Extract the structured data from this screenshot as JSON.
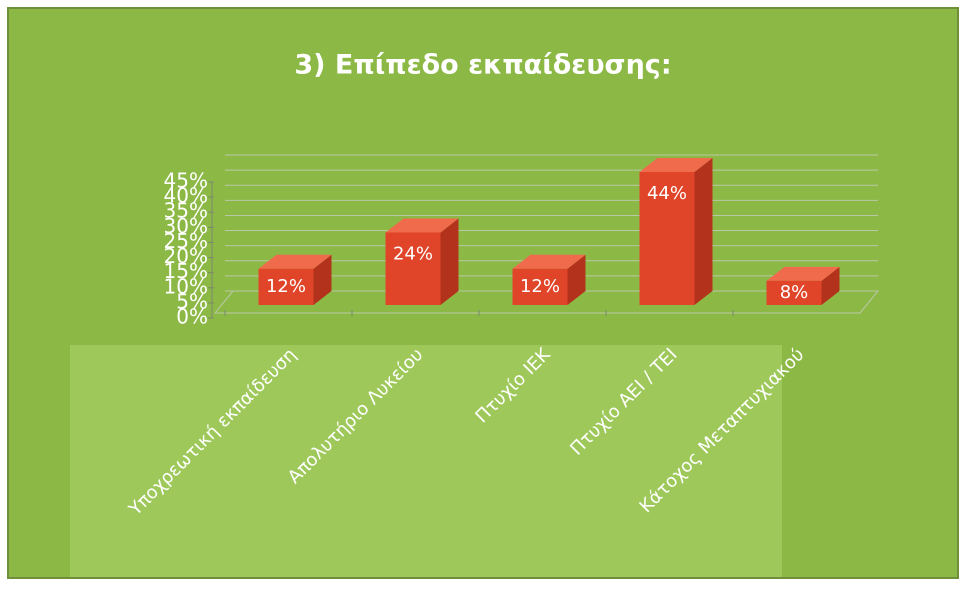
{
  "chart_data": {
    "type": "bar3d",
    "title": "3) Επίπεδο εκπαίδευσης:",
    "categories": [
      "Υποχρεωτική εκπαίδευση",
      "Απολυτήριο Λυκείου",
      "Πτυχίο ΙΕΚ",
      "Πτυχίο ΑΕΙ / ΤΕΙ",
      "Κάτοχος Μεταπτυχιακού"
    ],
    "values": [
      12,
      24,
      12,
      44,
      8
    ],
    "value_labels": [
      "12%",
      "24%",
      "12%",
      "44%",
      "8%"
    ],
    "color": "#e0452a",
    "ylim": [
      0,
      45
    ],
    "yticks": [
      {
        "value": 0,
        "label": "0%"
      },
      {
        "value": 5,
        "label": "5%"
      },
      {
        "value": 10,
        "label": "10%"
      },
      {
        "value": 15,
        "label": "15%"
      },
      {
        "value": 20,
        "label": "20%"
      },
      {
        "value": 25,
        "label": "25%"
      },
      {
        "value": 30,
        "label": "30%"
      },
      {
        "value": 35,
        "label": "35%"
      },
      {
        "value": 40,
        "label": "40%"
      },
      {
        "value": 45,
        "label": "45%"
      }
    ],
    "grid": true
  }
}
